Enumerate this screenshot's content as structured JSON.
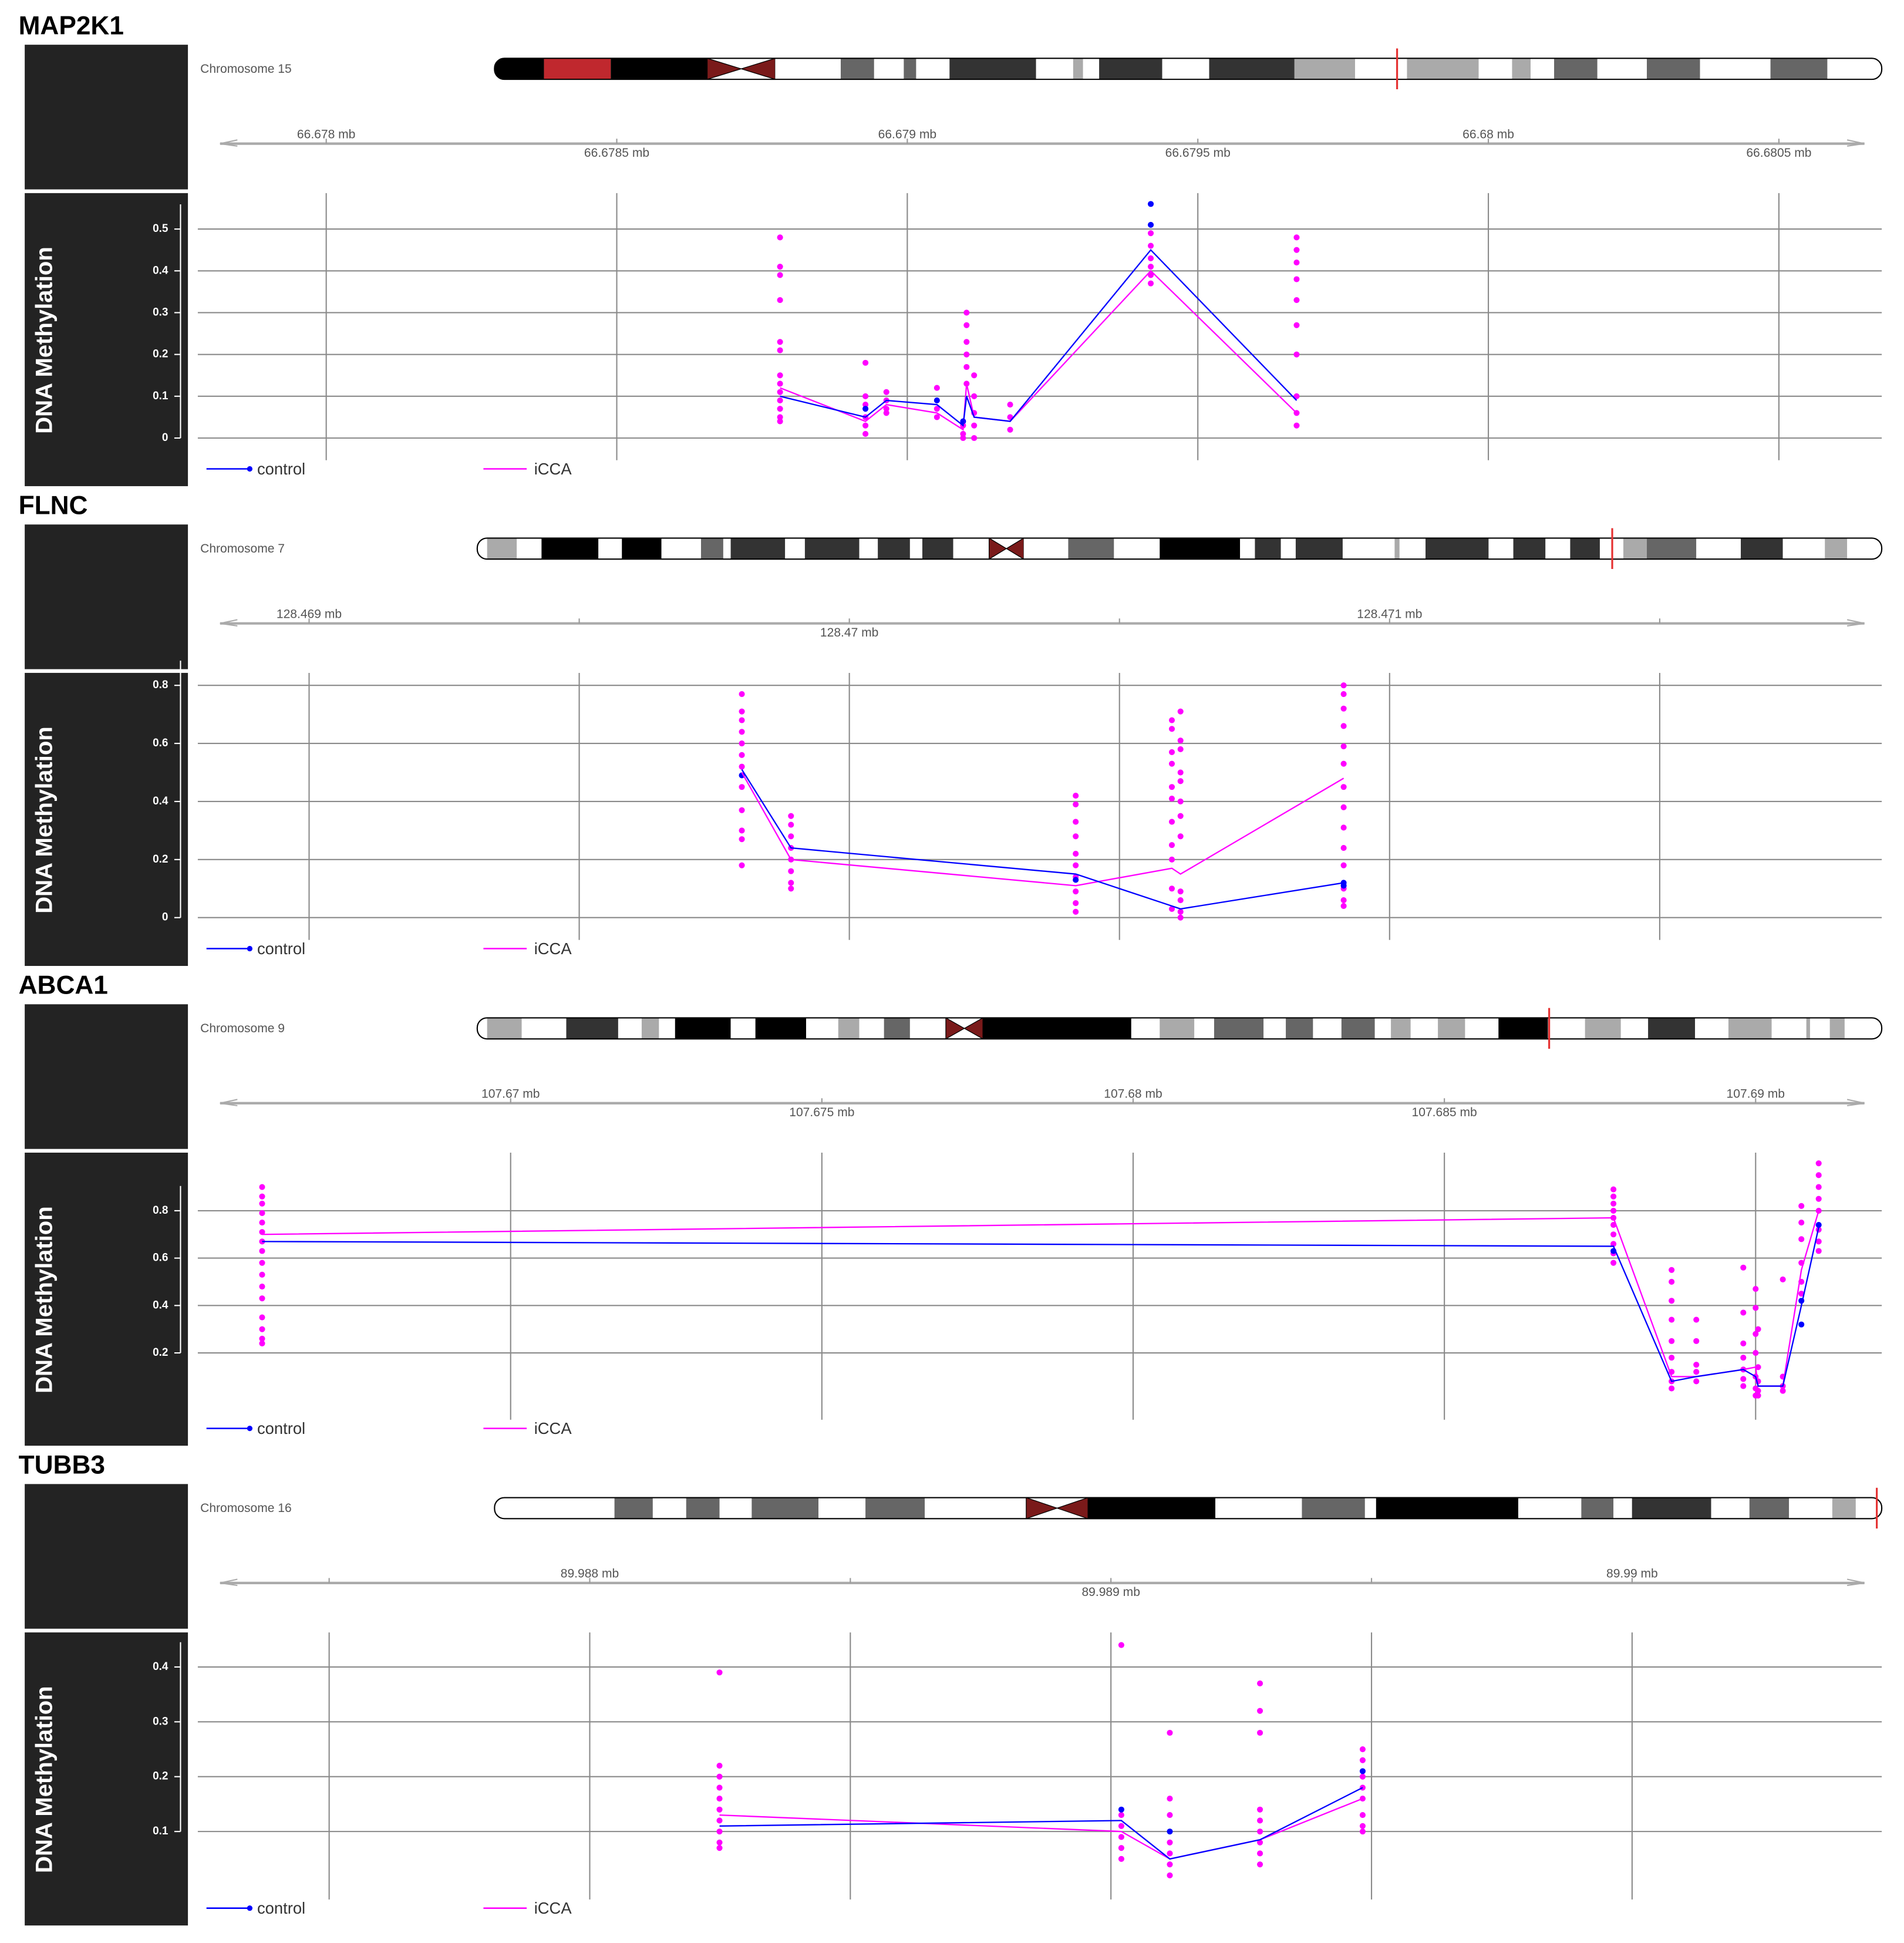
{
  "chart_data": [
    {
      "type": "line",
      "title": "MAP2K1",
      "chromosome": "Chromosome 15",
      "ylabel": "DNA Methylation",
      "xlim": [
        66.677779,
        66.680677
      ],
      "ylim": [
        -0.053,
        0.586
      ],
      "xticks": [
        {
          "value": 66.678,
          "label": "66.678 mb"
        },
        {
          "value": 66.6785,
          "label": "66.6785 mb"
        },
        {
          "value": 66.679,
          "label": "66.679 mb"
        },
        {
          "value": 66.6795,
          "label": "66.6795 mb"
        },
        {
          "value": 66.68,
          "label": "66.68 mb"
        },
        {
          "value": 66.6805,
          "label": "66.6805 mb"
        }
      ],
      "yticks": [
        0,
        0.1,
        0.2,
        0.3,
        0.4,
        0.5
      ],
      "grid": true,
      "series": [
        {
          "name": "control",
          "color": "#0000ff",
          "x": [
            66.678781,
            66.678928,
            66.678964,
            66.679051,
            66.679096,
            66.679102,
            66.679115,
            66.679177,
            66.679419,
            66.67967
          ],
          "values": [
            0.1,
            0.05,
            0.09,
            0.08,
            0.03,
            0.1,
            0.05,
            0.04,
            0.45,
            0.09
          ],
          "samples": [
            [],
            [
              0.07
            ],
            [],
            [
              0.09
            ],
            [
              0.04
            ],
            [],
            [],
            [],
            [
              0.56,
              0.51
            ],
            []
          ]
        },
        {
          "name": "iCCA",
          "color": "#ff00ff",
          "x": [
            66.678781,
            66.678928,
            66.678964,
            66.679051,
            66.679096,
            66.679102,
            66.679115,
            66.679177,
            66.679419,
            66.67967
          ],
          "values": [
            0.12,
            0.04,
            0.08,
            0.06,
            0.02,
            0.13,
            0.05,
            0.04,
            0.4,
            0.06
          ],
          "samples": [
            [
              0.48,
              0.41,
              0.39,
              0.33,
              0.23,
              0.21,
              0.15,
              0.13,
              0.11,
              0.09,
              0.07,
              0.05,
              0.04
            ],
            [
              0.18,
              0.1,
              0.08,
              0.05,
              0.03,
              0.01
            ],
            [
              0.11,
              0.09,
              0.07,
              0.06
            ],
            [
              0.12,
              0.07,
              0.05
            ],
            [
              0.03,
              0.01,
              0.0
            ],
            [
              0.3,
              0.27,
              0.23,
              0.2,
              0.17,
              0.13
            ],
            [
              0.15,
              0.1,
              0.06,
              0.03,
              0.0
            ],
            [
              0.08,
              0.05,
              0.02
            ],
            [
              0.49,
              0.46,
              0.43,
              0.41,
              0.39,
              0.37
            ],
            [
              0.48,
              0.45,
              0.42,
              0.38,
              0.33,
              0.27,
              0.2,
              0.1,
              0.06,
              0.03
            ]
          ]
        }
      ]
    },
    {
      "type": "line",
      "title": "FLNC",
      "chromosome": "Chromosome 7",
      "ylabel": "DNA Methylation",
      "xlim": [
        128.468794,
        128.471911
      ],
      "ylim": [
        -0.077,
        0.843
      ],
      "xticks": [
        {
          "value": 128.469,
          "label": "128.469 mb"
        },
        {
          "value": 128.4695,
          "label": null
        },
        {
          "value": 128.47,
          "label": "128.47 mb"
        },
        {
          "value": 128.4705,
          "label": null
        },
        {
          "value": 128.471,
          "label": "128.471 mb"
        },
        {
          "value": 128.4715,
          "label": null
        }
      ],
      "yticks": [
        0,
        0.2,
        0.4,
        0.6,
        0.8
      ],
      "grid": true,
      "series": [
        {
          "name": "control",
          "color": "#0000ff",
          "x": [
            128.469801,
            128.469892,
            128.470419,
            128.470597,
            128.470613,
            128.470915
          ],
          "values": [
            0.51,
            0.24,
            0.15,
            0.04,
            0.03,
            0.12
          ],
          "samples": [
            [
              0.49
            ],
            [],
            [
              0.13
            ],
            [],
            [],
            [
              0.12,
              0.11
            ]
          ]
        },
        {
          "name": "iCCA",
          "color": "#ff00ff",
          "x": [
            128.469801,
            128.469892,
            128.470419,
            128.470597,
            128.470613,
            128.470915
          ],
          "values": [
            0.5,
            0.2,
            0.11,
            0.17,
            0.15,
            0.48
          ],
          "samples": [
            [
              0.77,
              0.71,
              0.68,
              0.64,
              0.6,
              0.56,
              0.52,
              0.45,
              0.37,
              0.3,
              0.27,
              0.18
            ],
            [
              0.35,
              0.32,
              0.28,
              0.24,
              0.2,
              0.16,
              0.12,
              0.1
            ],
            [
              0.42,
              0.39,
              0.33,
              0.28,
              0.22,
              0.18,
              0.14,
              0.09,
              0.05,
              0.02
            ],
            [
              0.68,
              0.65,
              0.57,
              0.53,
              0.45,
              0.41,
              0.33,
              0.25,
              0.2,
              0.1,
              0.03
            ],
            [
              0.71,
              0.61,
              0.58,
              0.5,
              0.47,
              0.4,
              0.35,
              0.28,
              0.09,
              0.06,
              0.02,
              0.0
            ],
            [
              0.8,
              0.77,
              0.72,
              0.66,
              0.59,
              0.53,
              0.45,
              0.38,
              0.31,
              0.24,
              0.18,
              0.1,
              0.06,
              0.04
            ]
          ]
        }
      ]
    },
    {
      "type": "line",
      "title": "ABCA1",
      "chromosome": "Chromosome 9",
      "ylabel": "DNA Methylation",
      "xlim": [
        107.664975,
        107.692026
      ],
      "ylim": [
        -0.082,
        1.045
      ],
      "xticks": [
        {
          "value": 107.67,
          "label": "107.67 mb"
        },
        {
          "value": 107.675,
          "label": "107.675 mb"
        },
        {
          "value": 107.68,
          "label": "107.68 mb"
        },
        {
          "value": 107.685,
          "label": "107.685 mb"
        },
        {
          "value": 107.69,
          "label": "107.69 mb"
        }
      ],
      "yticks": [
        0.2,
        0.4,
        0.6,
        0.8
      ],
      "grid": true,
      "series": [
        {
          "name": "control",
          "color": "#0000ff",
          "x": [
            107.666008,
            107.687716,
            107.68865,
            107.689047,
            107.689802,
            107.69,
            107.69004,
            107.690437,
            107.690735,
            107.691013
          ],
          "values": [
            0.67,
            0.65,
            0.08,
            0.1,
            0.13,
            0.1,
            0.06,
            0.06,
            0.4,
            0.73
          ],
          "samples": [
            [],
            [
              0.63
            ],
            [],
            [],
            [],
            [],
            [],
            [],
            [
              0.42,
              0.32
            ],
            [
              0.74
            ]
          ]
        },
        {
          "name": "iCCA",
          "color": "#ff00ff",
          "x": [
            107.666008,
            107.687716,
            107.68865,
            107.689047,
            107.689802,
            107.69,
            107.69004,
            107.690437,
            107.690735,
            107.691013
          ],
          "values": [
            0.7,
            0.77,
            0.1,
            0.1,
            0.13,
            0.14,
            0.06,
            0.06,
            0.55,
            0.8
          ],
          "samples": [
            [
              0.9,
              0.86,
              0.83,
              0.79,
              0.75,
              0.71,
              0.67,
              0.63,
              0.58,
              0.53,
              0.48,
              0.43,
              0.35,
              0.3,
              0.26,
              0.24
            ],
            [
              0.89,
              0.86,
              0.83,
              0.8,
              0.77,
              0.74,
              0.7,
              0.66,
              0.62,
              0.58
            ],
            [
              0.55,
              0.5,
              0.42,
              0.34,
              0.25,
              0.18,
              0.12,
              0.08,
              0.05
            ],
            [
              0.34,
              0.25,
              0.15,
              0.12,
              0.08
            ],
            [
              0.56,
              0.37,
              0.24,
              0.18,
              0.13,
              0.09,
              0.06
            ],
            [
              0.47,
              0.39,
              0.28,
              0.2,
              0.1,
              0.05,
              0.02
            ],
            [
              0.3,
              0.14,
              0.08,
              0.04,
              0.02
            ],
            [
              0.51,
              0.1,
              0.06,
              0.04
            ],
            [
              0.82,
              0.75,
              0.68,
              0.58,
              0.5,
              0.45
            ],
            [
              1.0,
              0.95,
              0.9,
              0.85,
              0.8,
              0.72,
              0.67,
              0.63
            ]
          ]
        }
      ]
    },
    {
      "type": "line",
      "title": "TUBB3",
      "chromosome": "Chromosome 16",
      "ylabel": "DNA Methylation",
      "xlim": [
        89.987248,
        89.990479
      ],
      "ylim": [
        -0.024,
        0.463
      ],
      "xticks": [
        {
          "value": 89.9875,
          "label": null
        },
        {
          "value": 89.988,
          "label": "89.988 mb"
        },
        {
          "value": 89.9885,
          "label": null
        },
        {
          "value": 89.989,
          "label": "89.989 mb"
        },
        {
          "value": 89.9895,
          "label": null
        },
        {
          "value": 89.99,
          "label": "89.99 mb"
        }
      ],
      "yticks": [
        0.1,
        0.2,
        0.3,
        0.4
      ],
      "grid": true,
      "series": [
        {
          "name": "control",
          "color": "#0000ff",
          "x": [
            89.988249,
            89.98902,
            89.989113,
            89.989286,
            89.989483
          ],
          "values": [
            0.11,
            0.12,
            0.05,
            0.085,
            0.18
          ],
          "samples": [
            [],
            [
              0.14
            ],
            [
              0.1
            ],
            [],
            [
              0.21
            ]
          ]
        },
        {
          "name": "iCCA",
          "color": "#ff00ff",
          "x": [
            89.988249,
            89.98902,
            89.989113,
            89.989286,
            89.989483
          ],
          "values": [
            0.13,
            0.1,
            0.05,
            0.085,
            0.16
          ],
          "samples": [
            [
              0.39,
              0.22,
              0.2,
              0.18,
              0.16,
              0.14,
              0.12,
              0.1,
              0.08,
              0.07
            ],
            [
              0.44,
              0.13,
              0.11,
              0.09,
              0.07,
              0.05
            ],
            [
              0.28,
              0.16,
              0.13,
              0.08,
              0.06,
              0.04,
              0.02
            ],
            [
              0.37,
              0.32,
              0.28,
              0.14,
              0.12,
              0.1,
              0.08,
              0.06,
              0.04
            ],
            [
              0.25,
              0.23,
              0.2,
              0.18,
              0.16,
              0.13,
              0.11,
              0.1
            ]
          ]
        }
      ]
    }
  ]
}
